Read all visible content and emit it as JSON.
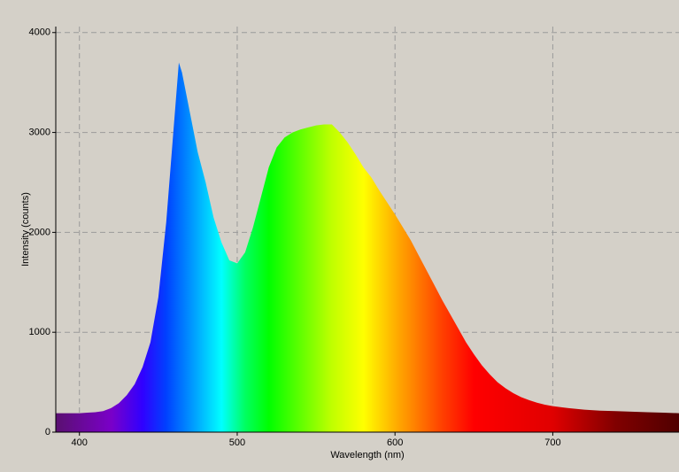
{
  "chart_data": {
    "type": "area",
    "x_label": "Wavelength (nm)",
    "y_label": "Intensity (counts)",
    "x": [
      385,
      390,
      395,
      400,
      405,
      410,
      415,
      420,
      425,
      430,
      435,
      440,
      445,
      450,
      455,
      460,
      463,
      465,
      470,
      475,
      480,
      485,
      490,
      495,
      500,
      505,
      510,
      515,
      520,
      525,
      530,
      535,
      540,
      545,
      550,
      555,
      560,
      565,
      570,
      575,
      580,
      585,
      590,
      595,
      600,
      605,
      610,
      615,
      620,
      625,
      630,
      635,
      640,
      645,
      650,
      655,
      660,
      665,
      670,
      675,
      680,
      685,
      690,
      695,
      700,
      710,
      720,
      730,
      740,
      750,
      760,
      770,
      780
    ],
    "values": [
      190,
      190,
      190,
      190,
      195,
      200,
      210,
      240,
      290,
      370,
      480,
      650,
      900,
      1350,
      2100,
      3100,
      3700,
      3600,
      3200,
      2800,
      2500,
      2150,
      1900,
      1720,
      1690,
      1800,
      2050,
      2350,
      2650,
      2850,
      2950,
      3000,
      3030,
      3050,
      3070,
      3080,
      3080,
      3000,
      2900,
      2780,
      2650,
      2550,
      2420,
      2300,
      2180,
      2050,
      1920,
      1770,
      1620,
      1470,
      1320,
      1180,
      1040,
      900,
      780,
      670,
      580,
      500,
      440,
      390,
      350,
      320,
      295,
      275,
      260,
      240,
      225,
      215,
      210,
      205,
      200,
      195,
      190
    ],
    "xlim": [
      385,
      780
    ],
    "ylim": [
      0,
      4060
    ],
    "xticks": [
      400,
      500,
      600,
      700
    ],
    "yticks": [
      0,
      1000,
      2000,
      3000,
      4000
    ],
    "grid": true
  }
}
